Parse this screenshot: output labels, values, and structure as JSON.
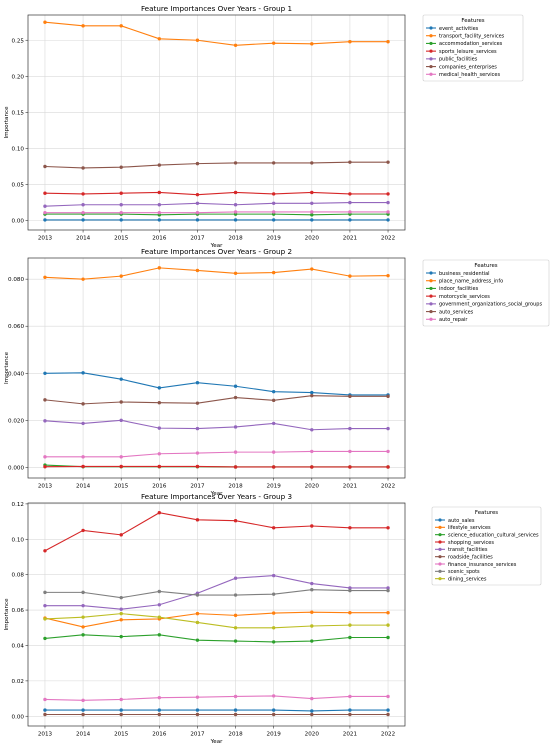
{
  "chart_data": [
    {
      "type": "line",
      "title": "Feature Importances Over Years - Group 1",
      "xlabel": "Year",
      "ylabel": "Importance",
      "x": [
        2013,
        2014,
        2015,
        2016,
        2017,
        2018,
        2019,
        2020,
        2021,
        2022
      ],
      "ylim": [
        -0.013,
        0.285
      ],
      "yticks": [
        0.0,
        0.05,
        0.1,
        0.15,
        0.2,
        0.25
      ],
      "grid": true,
      "legend_title": "Features",
      "legend_position": "outside-right",
      "series": [
        {
          "name": "event_activities",
          "color": "#1f77b4",
          "values": [
            0.001,
            0.001,
            0.001,
            0.001,
            0.001,
            0.001,
            0.001,
            0.001,
            0.001,
            0.001
          ]
        },
        {
          "name": "transport_facility_services",
          "color": "#ff7f0e",
          "values": [
            0.275,
            0.27,
            0.27,
            0.252,
            0.25,
            0.243,
            0.246,
            0.245,
            0.248,
            0.248
          ]
        },
        {
          "name": "accommodation_services",
          "color": "#2ca02c",
          "values": [
            0.009,
            0.009,
            0.009,
            0.008,
            0.009,
            0.009,
            0.009,
            0.008,
            0.009,
            0.009
          ]
        },
        {
          "name": "sports_leisure_services",
          "color": "#d62728",
          "values": [
            0.038,
            0.037,
            0.038,
            0.039,
            0.036,
            0.039,
            0.037,
            0.039,
            0.037,
            0.037
          ]
        },
        {
          "name": "public_facilities",
          "color": "#9467bd",
          "values": [
            0.02,
            0.022,
            0.022,
            0.022,
            0.024,
            0.022,
            0.024,
            0.024,
            0.025,
            0.025
          ]
        },
        {
          "name": "companies_enterprises",
          "color": "#8c564b",
          "values": [
            0.075,
            0.073,
            0.074,
            0.077,
            0.079,
            0.08,
            0.08,
            0.08,
            0.081,
            0.081
          ]
        },
        {
          "name": "medical_health_services",
          "color": "#e377c2",
          "values": [
            0.011,
            0.011,
            0.011,
            0.011,
            0.011,
            0.012,
            0.012,
            0.012,
            0.012,
            0.012
          ]
        }
      ]
    },
    {
      "type": "line",
      "title": "Feature Importances Over Years - Group 2",
      "xlabel": "Year",
      "ylabel": "Importance",
      "x": [
        2013,
        2014,
        2015,
        2016,
        2017,
        2018,
        2019,
        2020,
        2021,
        2022
      ],
      "ylim": [
        -0.0045,
        0.089
      ],
      "yticks": [
        0.0,
        0.02,
        0.04,
        0.06,
        0.08
      ],
      "grid": true,
      "legend_title": "Features",
      "legend_position": "outside-right",
      "series": [
        {
          "name": "business_residential",
          "color": "#1f77b4",
          "values": [
            0.04,
            0.0402,
            0.0375,
            0.0338,
            0.036,
            0.0345,
            0.0322,
            0.0318,
            0.0308,
            0.0308
          ]
        },
        {
          "name": "place_name_address_info",
          "color": "#ff7f0e",
          "values": [
            0.0808,
            0.08,
            0.0813,
            0.0848,
            0.0837,
            0.0825,
            0.0828,
            0.0843,
            0.0813,
            0.0815
          ]
        },
        {
          "name": "indoor_facilities",
          "color": "#2ca02c",
          "values": [
            0.001,
            0.0003,
            0.0003,
            0.0003,
            0.0003,
            0.0002,
            0.0002,
            0.0002,
            0.0002,
            0.0002
          ]
        },
        {
          "name": "motorcycle_services",
          "color": "#d62728",
          "values": [
            0.0003,
            0.0004,
            0.0004,
            0.0004,
            0.0004,
            0.0002,
            0.0002,
            0.0002,
            0.0002,
            0.0002
          ]
        },
        {
          "name": "government_organizations_social_groups",
          "color": "#9467bd",
          "values": [
            0.0198,
            0.0187,
            0.02,
            0.0167,
            0.0165,
            0.0172,
            0.0187,
            0.016,
            0.0165,
            0.0165
          ]
        },
        {
          "name": "auto_services",
          "color": "#8c564b",
          "values": [
            0.0287,
            0.027,
            0.0278,
            0.0275,
            0.0273,
            0.0297,
            0.0285,
            0.0305,
            0.0302,
            0.0302
          ]
        },
        {
          "name": "auto_repair",
          "color": "#e377c2",
          "values": [
            0.0045,
            0.0045,
            0.0045,
            0.0058,
            0.0061,
            0.0065,
            0.0065,
            0.0068,
            0.0068,
            0.0068
          ]
        }
      ]
    },
    {
      "type": "line",
      "title": "Feature Importances Over Years - Group 3",
      "xlabel": "Year",
      "ylabel": "Importance",
      "x": [
        2013,
        2014,
        2015,
        2016,
        2017,
        2018,
        2019,
        2020,
        2021,
        2022
      ],
      "ylim": [
        -0.0055,
        0.1205
      ],
      "yticks": [
        0.0,
        0.02,
        0.04,
        0.06,
        0.08,
        0.1,
        0.12
      ],
      "grid": true,
      "legend_title": "Features",
      "legend_position": "outside-right",
      "series": [
        {
          "name": "auto_sales",
          "color": "#1f77b4",
          "values": [
            0.0035,
            0.0035,
            0.0035,
            0.0035,
            0.0035,
            0.0035,
            0.0035,
            0.003,
            0.0035,
            0.0035
          ]
        },
        {
          "name": "lifestyle_services",
          "color": "#ff7f0e",
          "values": [
            0.0555,
            0.0505,
            0.0545,
            0.055,
            0.058,
            0.057,
            0.0583,
            0.0588,
            0.0585,
            0.0585
          ]
        },
        {
          "name": "science_education_cultural_services",
          "color": "#2ca02c",
          "values": [
            0.044,
            0.046,
            0.045,
            0.046,
            0.043,
            0.0425,
            0.042,
            0.0425,
            0.0445,
            0.0445
          ]
        },
        {
          "name": "shopping_services",
          "color": "#d62728",
          "values": [
            0.0935,
            0.105,
            0.1025,
            0.115,
            0.111,
            0.1105,
            0.1065,
            0.1075,
            0.1065,
            0.1065
          ]
        },
        {
          "name": "transit_facilities",
          "color": "#9467bd",
          "values": [
            0.0625,
            0.0625,
            0.0605,
            0.063,
            0.0695,
            0.078,
            0.0795,
            0.075,
            0.0725,
            0.0725
          ]
        },
        {
          "name": "roadside_facilities",
          "color": "#8c564b",
          "values": [
            0.001,
            0.001,
            0.001,
            0.001,
            0.001,
            0.001,
            0.001,
            0.001,
            0.001,
            0.001
          ]
        },
        {
          "name": "finance_insurance_services",
          "color": "#e377c2",
          "values": [
            0.0095,
            0.009,
            0.0095,
            0.0105,
            0.0108,
            0.0112,
            0.0115,
            0.01,
            0.0112,
            0.0112
          ]
        },
        {
          "name": "scenic_spots",
          "color": "#7f7f7f",
          "values": [
            0.07,
            0.07,
            0.067,
            0.0705,
            0.0685,
            0.0685,
            0.069,
            0.0715,
            0.071,
            0.071
          ]
        },
        {
          "name": "dining_services",
          "color": "#bcbd22",
          "values": [
            0.055,
            0.056,
            0.058,
            0.056,
            0.053,
            0.05,
            0.05,
            0.051,
            0.0515,
            0.0515
          ]
        }
      ]
    }
  ]
}
